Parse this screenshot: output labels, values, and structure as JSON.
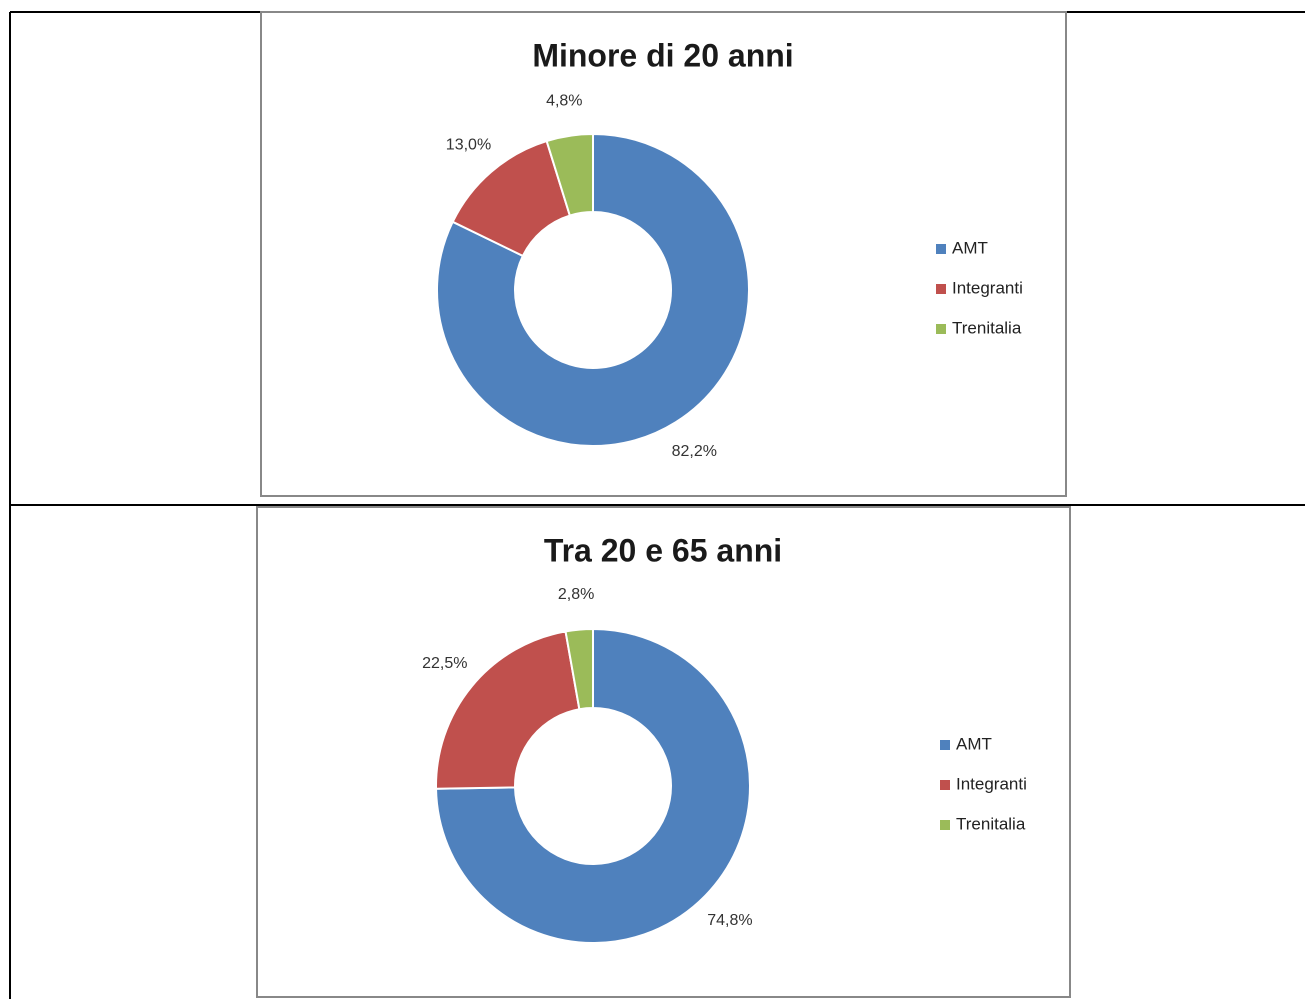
{
  "chart_data": [
    {
      "type": "donut",
      "title": "Minore di 20 anni",
      "categories": [
        "AMT",
        "Integranti",
        "Trenitalia"
      ],
      "values": [
        82.2,
        13.0,
        4.8
      ],
      "value_labels": [
        "82,2%",
        "13,0%",
        "4,8%"
      ],
      "colors": [
        "#4f81bd",
        "#c0504d",
        "#9bbb59"
      ],
      "legend": "right"
    },
    {
      "type": "donut",
      "title": "Tra 20 e 65 anni",
      "categories": [
        "AMT",
        "Integranti",
        "Trenitalia"
      ],
      "values": [
        74.8,
        22.5,
        2.8
      ],
      "value_labels": [
        "74,8%",
        "22,5%",
        "2,8%"
      ],
      "colors": [
        "#4f81bd",
        "#c0504d",
        "#9bbb59"
      ],
      "legend": "right"
    }
  ]
}
